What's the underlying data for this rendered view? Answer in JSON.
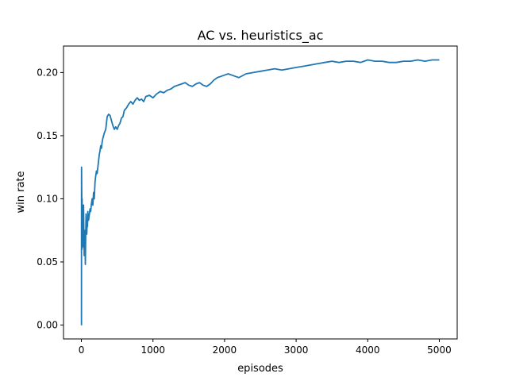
{
  "chart_data": {
    "type": "line",
    "title": "AC vs. heuristics_ac",
    "xlabel": "episodes",
    "ylabel": "win rate",
    "xlim": [
      -250,
      5250
    ],
    "ylim": [
      -0.011,
      0.221
    ],
    "xticks": [
      0,
      1000,
      2000,
      3000,
      4000,
      5000
    ],
    "yticks": [
      0.0,
      0.05,
      0.1,
      0.15,
      0.2
    ],
    "xtick_labels": [
      "0",
      "1000",
      "2000",
      "3000",
      "4000",
      "5000"
    ],
    "ytick_labels": [
      "0.00",
      "0.05",
      "0.10",
      "0.15",
      "0.20"
    ],
    "grid": false,
    "series": [
      {
        "color": "#1f77b4",
        "x": [
          0,
          1,
          2,
          4,
          6,
          8,
          10,
          13,
          16,
          20,
          25,
          30,
          35,
          40,
          45,
          50,
          55,
          60,
          65,
          70,
          75,
          80,
          85,
          90,
          95,
          100,
          110,
          120,
          130,
          140,
          150,
          160,
          170,
          180,
          190,
          200,
          210,
          220,
          230,
          240,
          250,
          260,
          270,
          280,
          290,
          300,
          320,
          340,
          360,
          380,
          400,
          420,
          440,
          460,
          480,
          500,
          520,
          540,
          560,
          580,
          600,
          630,
          660,
          690,
          720,
          750,
          780,
          810,
          840,
          870,
          900,
          950,
          1000,
          1050,
          1100,
          1150,
          1200,
          1250,
          1300,
          1350,
          1400,
          1450,
          1500,
          1550,
          1600,
          1650,
          1700,
          1750,
          1800,
          1850,
          1900,
          1950,
          2000,
          2050,
          2100,
          2150,
          2200,
          2300,
          2400,
          2500,
          2600,
          2700,
          2800,
          2900,
          3000,
          3100,
          3200,
          3300,
          3400,
          3500,
          3600,
          3700,
          3800,
          3900,
          4000,
          4100,
          4200,
          4300,
          4400,
          4500,
          4600,
          4700,
          4800,
          4900,
          5000
        ],
        "y": [
          0.0,
          0.0,
          0.125,
          0.11,
          0.095,
          0.06,
          0.1,
          0.065,
          0.09,
          0.08,
          0.062,
          0.095,
          0.07,
          0.055,
          0.06,
          0.075,
          0.048,
          0.07,
          0.088,
          0.075,
          0.072,
          0.08,
          0.078,
          0.09,
          0.085,
          0.083,
          0.087,
          0.092,
          0.09,
          0.096,
          0.1,
          0.095,
          0.105,
          0.1,
          0.113,
          0.118,
          0.122,
          0.12,
          0.125,
          0.13,
          0.135,
          0.138,
          0.142,
          0.14,
          0.145,
          0.148,
          0.152,
          0.155,
          0.165,
          0.167,
          0.166,
          0.162,
          0.158,
          0.155,
          0.157,
          0.155,
          0.158,
          0.16,
          0.164,
          0.165,
          0.17,
          0.172,
          0.175,
          0.177,
          0.175,
          0.178,
          0.18,
          0.178,
          0.179,
          0.177,
          0.181,
          0.182,
          0.18,
          0.183,
          0.185,
          0.184,
          0.186,
          0.187,
          0.189,
          0.19,
          0.191,
          0.192,
          0.19,
          0.189,
          0.191,
          0.192,
          0.19,
          0.189,
          0.191,
          0.194,
          0.196,
          0.197,
          0.198,
          0.199,
          0.198,
          0.197,
          0.196,
          0.199,
          0.2,
          0.201,
          0.202,
          0.203,
          0.202,
          0.203,
          0.204,
          0.205,
          0.206,
          0.207,
          0.208,
          0.209,
          0.208,
          0.209,
          0.209,
          0.208,
          0.21,
          0.209,
          0.209,
          0.208,
          0.208,
          0.209,
          0.209,
          0.21,
          0.209,
          0.21,
          0.21
        ]
      }
    ]
  }
}
